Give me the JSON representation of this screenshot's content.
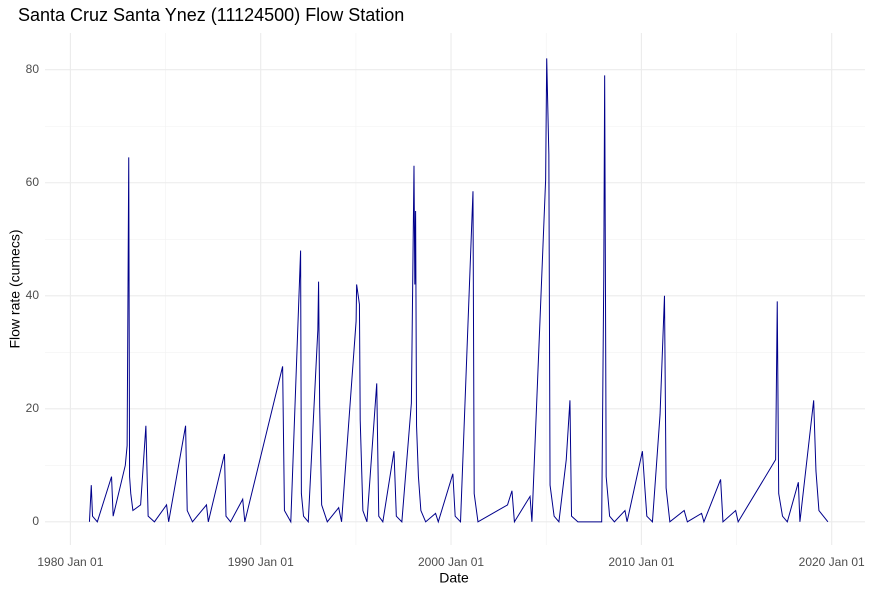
{
  "chart_data": {
    "type": "line",
    "title": "Santa Cruz Santa Ynez (11124500) Flow Station",
    "x_label": "Date",
    "y_label": "Flow rate (cumecs)",
    "xlim": [
      "1978-09-01",
      "2021-10-01"
    ],
    "xticks": [
      {
        "value": "1980-01-01",
        "label": "1980 Jan 01"
      },
      {
        "value": "1990-01-01",
        "label": "1990 Jan 01"
      },
      {
        "value": "2000-01-01",
        "label": "2000 Jan 01"
      },
      {
        "value": "2010-01-01",
        "label": "2010 Jan 01"
      },
      {
        "value": "2020-01-01",
        "label": "2020 Jan 01"
      }
    ],
    "minor_xticks": [
      "1985-01-01",
      "1995-01-01",
      "2005-01-01",
      "2015-01-01"
    ],
    "ylim": [
      -4.1,
      86.5
    ],
    "yticks": [
      0,
      20,
      40,
      60,
      80
    ],
    "minor_yticks": [
      10,
      30,
      50,
      70
    ],
    "grid": true,
    "series": [
      {
        "color": "#00008b",
        "x": [
          "1981-01-01",
          "1981-02-05",
          "1981-03-01",
          "1981-06-01",
          "1982-03-01",
          "1982-04-01",
          "1982-11-20",
          "1982-12-25",
          "1983-01-25",
          "1983-02-10",
          "1983-03-05",
          "1983-04-15",
          "1983-09-10",
          "1983-12-20",
          "1984-02-01",
          "1984-06-01",
          "1985-01-20",
          "1985-03-01",
          "1986-01-20",
          "1986-02-20",
          "1986-06-01",
          "1987-02-25",
          "1987-04-01",
          "1988-02-05",
          "1988-03-05",
          "1988-06-01",
          "1989-01-20",
          "1989-03-01",
          "1991-02-25",
          "1991-04-01",
          "1991-08-01",
          "1992-02-05",
          "1992-02-20",
          "1992-04-01",
          "1992-07-01",
          "1993-01-01",
          "1993-01-15",
          "1993-02-05",
          "1993-03-15",
          "1993-07-01",
          "1994-02-05",
          "1994-04-01",
          "1995-01-05",
          "1995-01-15",
          "1995-03-10",
          "1995-03-25",
          "1995-05-15",
          "1995-08-01",
          "1996-02-05",
          "1996-03-15",
          "1996-06-01",
          "1997-01-01",
          "1997-02-15",
          "1997-06-01",
          "1997-12-01",
          "1998-01-20",
          "1998-02-05",
          "1998-02-20",
          "1998-03-10",
          "1998-04-15",
          "1998-06-01",
          "1998-09-01",
          "1999-03-10",
          "1999-05-01",
          "2000-02-05",
          "2000-03-20",
          "2000-07-01",
          "2001-02-25",
          "2001-03-20",
          "2001-06-01",
          "2002-12-20",
          "2003-03-15",
          "2003-05-01",
          "2004-02-25",
          "2004-04-01",
          "2004-12-20",
          "2005-01-10",
          "2005-02-20",
          "2005-03-15",
          "2005-06-01",
          "2005-09-01",
          "2006-01-20",
          "2006-04-01",
          "2006-05-01",
          "2006-09-01",
          "2007-12-01",
          "2008-01-10",
          "2008-01-27",
          "2008-02-25",
          "2008-05-01",
          "2008-08-01",
          "2009-02-20",
          "2009-04-01",
          "2010-01-20",
          "2010-03-01",
          "2010-04-15",
          "2010-08-01",
          "2010-12-25",
          "2011-03-20",
          "2011-04-20",
          "2011-07-01",
          "2012-04-01",
          "2012-06-01",
          "2013-03-01",
          "2013-04-15",
          "2014-03-01",
          "2014-04-15",
          "2014-12-15",
          "2015-02-01",
          "2017-01-20",
          "2017-02-20",
          "2017-03-20",
          "2017-06-01",
          "2017-09-01",
          "2018-04-01",
          "2018-05-01",
          "2019-01-20",
          "2019-02-15",
          "2019-03-05",
          "2019-05-01",
          "2019-10-20"
        ],
        "values": [
          0,
          6.5,
          1,
          0,
          8,
          1,
          10,
          13.5,
          64.5,
          8,
          5,
          2,
          3,
          17,
          1,
          0,
          3,
          0,
          17,
          2,
          0,
          3,
          0,
          12,
          1,
          0,
          4,
          0,
          27.5,
          2,
          0,
          48,
          5,
          1,
          0,
          34,
          42.5,
          20.5,
          3,
          0,
          2.5,
          0,
          35.5,
          42,
          38.5,
          18,
          2,
          0,
          24.5,
          1,
          0,
          12.5,
          1,
          0,
          21,
          63,
          42,
          55,
          17,
          8,
          2,
          0,
          1.5,
          0,
          8.5,
          1,
          0,
          58.5,
          5,
          0,
          3,
          5.5,
          0,
          4.5,
          0,
          60.5,
          82,
          65,
          6.5,
          1,
          0,
          11,
          21.5,
          1,
          0,
          0,
          43.5,
          79,
          8,
          1,
          0,
          2,
          0,
          12.5,
          7,
          1,
          0,
          19,
          40,
          6,
          0,
          2,
          0,
          1.5,
          0,
          7.5,
          0,
          2,
          0,
          11,
          39,
          5,
          1,
          0,
          7,
          0,
          21.5,
          14,
          9,
          2,
          0
        ]
      }
    ]
  }
}
